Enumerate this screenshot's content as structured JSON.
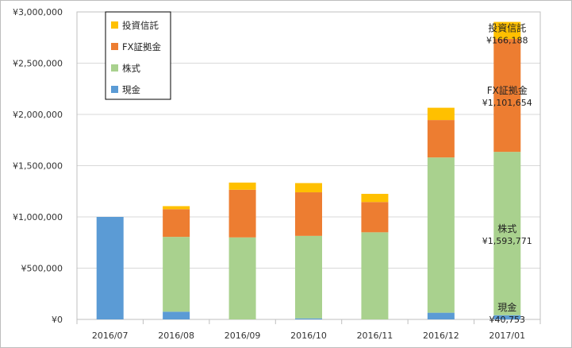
{
  "chart_data": {
    "type": "bar",
    "stacked": true,
    "categories": [
      "2016/07",
      "2016/08",
      "2016/09",
      "2016/10",
      "2016/11",
      "2016/12",
      "2017/01"
    ],
    "series": [
      {
        "name": "現金",
        "color": "#5b9bd5",
        "values": [
          1000000,
          75000,
          0,
          10000,
          0,
          65000,
          40753
        ]
      },
      {
        "name": "株式",
        "color": "#a9d18e",
        "values": [
          0,
          730000,
          800000,
          805000,
          850000,
          1515000,
          1593771
        ]
      },
      {
        "name": "FX証拠金",
        "color": "#ed7d31",
        "values": [
          0,
          270000,
          465000,
          425000,
          295000,
          365000,
          1101654
        ]
      },
      {
        "name": "投資信託",
        "color": "#ffc000",
        "values": [
          0,
          30000,
          70000,
          90000,
          80000,
          120000,
          166188
        ]
      }
    ],
    "legend_order": [
      "投資信託",
      "FX証拠金",
      "株式",
      "現金"
    ],
    "legend_position": "top-left",
    "ylim": [
      0,
      3000000
    ],
    "yticks": [
      0,
      500000,
      1000000,
      1500000,
      2000000,
      2500000,
      3000000
    ],
    "ytick_labels": [
      "¥0",
      "¥500,000",
      "¥1,000,000",
      "¥1,500,000",
      "¥2,000,000",
      "¥2,500,000",
      "¥3,000,000"
    ],
    "grid": true,
    "annotations": [
      {
        "series": "投資信託",
        "category": "2017/01",
        "name": "投資信託",
        "value": "¥166,188"
      },
      {
        "series": "FX証拠金",
        "category": "2017/01",
        "name": "FX証拠金",
        "value": "¥1,101,654"
      },
      {
        "series": "株式",
        "category": "2017/01",
        "name": "株式",
        "value": "¥1,593,771"
      },
      {
        "series": "現金",
        "category": "2017/01",
        "name": "現金",
        "value": "¥40,753"
      }
    ]
  }
}
